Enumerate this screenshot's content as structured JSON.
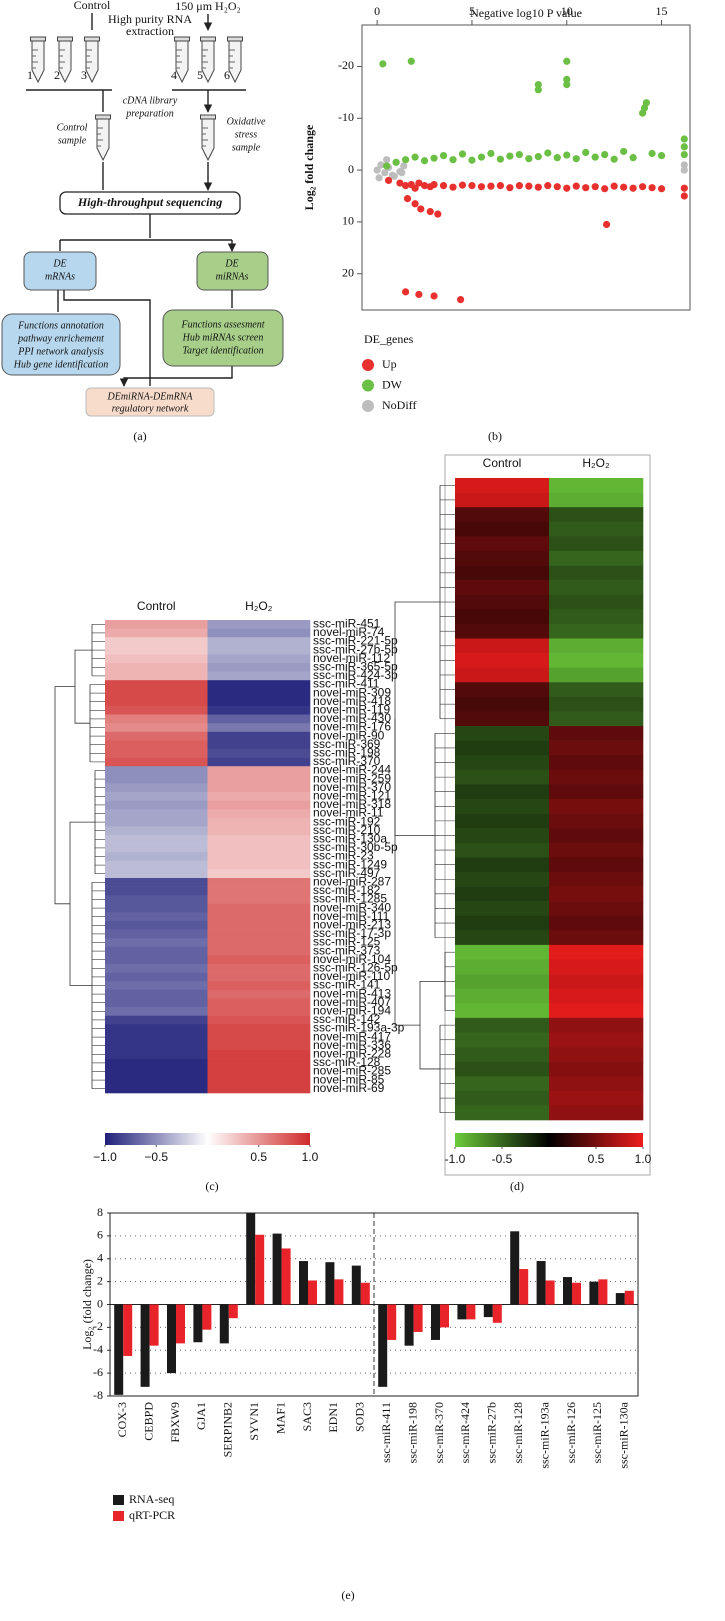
{
  "diagram": {
    "label": "(a)",
    "control": "Control",
    "treatment": "150 μm H₂O₂",
    "rna_extraction": [
      "High purity RNA",
      "extraction"
    ],
    "tube_numbers": [
      "1",
      "2",
      "3",
      "4",
      "5",
      "6"
    ],
    "library": [
      "cDNA library",
      "preparation"
    ],
    "control_sample": [
      "Control",
      "sample"
    ],
    "stress_sample": [
      "Oxidative",
      "stress",
      "sample"
    ],
    "sequencing": "High-throughput sequencing",
    "de_mrnas": [
      "DE",
      "mRNAs"
    ],
    "de_mirnas": [
      "DE",
      "miRNAs"
    ],
    "mrna_analysis": [
      "Functions annotation",
      "pathway enrichement",
      "PPI network analysis",
      "Hub gene identification"
    ],
    "mirna_analysis": [
      "Functions assesment",
      "Hub miRNAs screen",
      "Target identification"
    ],
    "network": [
      "DEmiRNA-DEmRNA",
      "regulatory network"
    ]
  },
  "chart_data": [
    {
      "type": "scatter",
      "label": "(b)",
      "x_label": "Negative log10 P value",
      "y_label": "Log₂ fold change",
      "xlim": [
        -0.8,
        16.5
      ],
      "xticks": [
        0,
        5,
        10,
        15
      ],
      "x_axis_position": "top",
      "ylim": [
        -28,
        27
      ],
      "yticks": [
        -20,
        -10,
        0,
        10,
        20
      ],
      "y_inverted": true,
      "legend_title": "DE_genes",
      "series": [
        {
          "name": "Up",
          "color": "#e8312f",
          "x": [
            0.6,
            1.2,
            1.5,
            1.8,
            2.0,
            2.2,
            2.5,
            2.8,
            3.0,
            3.5,
            4.0,
            4.5,
            5,
            5.5,
            6,
            6.5,
            7,
            7.5,
            8,
            8.5,
            9,
            9.5,
            10,
            10.5,
            11,
            11.5,
            12,
            12.5,
            13,
            13.5,
            14,
            14.5,
            15,
            16.2,
            16.2,
            1.6,
            2.0,
            2.3,
            2.8,
            3.2,
            12.1,
            1.5,
            2.2,
            3.0,
            4.4
          ],
          "values": [
            2,
            2.5,
            3,
            2.8,
            3.5,
            2.5,
            3,
            3.2,
            2.8,
            3,
            3.3,
            2.9,
            3,
            3.2,
            3.1,
            3,
            3.4,
            3,
            3.1,
            3.3,
            3,
            3.2,
            3.5,
            3.1,
            3.4,
            3.2,
            3.6,
            3.1,
            3.3,
            3.5,
            3.2,
            3.4,
            3.6,
            3.5,
            5,
            5.5,
            6.5,
            7.5,
            8,
            8.5,
            10.5,
            23.5,
            24,
            24.3,
            25
          ]
        },
        {
          "name": "DW",
          "color": "#6cbf45",
          "x": [
            0.3,
            1.8,
            10,
            8.5,
            8.5,
            10,
            10,
            14,
            14.1,
            14.2,
            0.5,
            1.0,
            1.5,
            2.0,
            2.5,
            3,
            3.5,
            4,
            4.5,
            5,
            5.5,
            6,
            6.5,
            7,
            7.5,
            8,
            8.5,
            9,
            9.5,
            10,
            10.5,
            11,
            11.5,
            12,
            12.5,
            13,
            13.5,
            14.5,
            15,
            16.2,
            16.2,
            16.2
          ],
          "values": [
            -20.5,
            -21,
            -21,
            -15.5,
            -16.5,
            -16.5,
            -17.5,
            -11,
            -12,
            -13,
            -0.8,
            -1.5,
            -2,
            -2.5,
            -1.8,
            -2.3,
            -2.8,
            -2,
            -3.1,
            -1.9,
            -2.5,
            -3.2,
            -2.1,
            -2.7,
            -3,
            -2.2,
            -2.6,
            -3.3,
            -2.4,
            -2.9,
            -2.2,
            -3.4,
            -2.5,
            -3,
            -2.1,
            -3.6,
            -2.4,
            -3.2,
            -2.8,
            -3,
            -4.5,
            -6
          ]
        },
        {
          "name": "NoDiff",
          "color": "#bdbdbd",
          "x": [
            0,
            0.2,
            0.4,
            0.6,
            0.8,
            1,
            1.2,
            1.4,
            0.1,
            0.5,
            0.9,
            1.3,
            16.2,
            16.2
          ],
          "values": [
            0,
            -1,
            0.5,
            -0.5,
            1,
            -1.5,
            0.3,
            -0.8,
            1.5,
            -2,
            1.2,
            0.5,
            0,
            -1
          ]
        }
      ]
    },
    {
      "type": "heatmap",
      "label": "(c)",
      "columns": [
        "Control",
        "H₂O₂"
      ],
      "rows": [
        "ssc-miR-451",
        "novel-miR-74",
        "ssc-miR-221-5p",
        "ssc-miR-27b-5p",
        "novel-miR-112",
        "ssc-miR-365-5p",
        "ssc-miR-424-3p",
        "ssc-miR-411",
        "novel-miR-309",
        "novel-miR-418",
        "novel-miR-119",
        "novel-miR-430",
        "novel-miR-176",
        "novel-miR-90",
        "ssc-miR-369",
        "ssc-miR-198",
        "ssc-miR-370",
        "novel-miR-244",
        "novel-miR-259",
        "novel-miR-370",
        "novel-miR-121",
        "novel-miR-318",
        "novel-miR-11",
        "ssc-miR-192",
        "ssc-miR-210",
        "ssc-miR-130a",
        "ssc-miR-30b-5p",
        "ssc-miR-23",
        "ssc-miR-1249",
        "ssc-miR-497",
        "novel-miR-287",
        "ssc-miR-182",
        "ssc-miR-1285",
        "novel-miR-340",
        "novel-miR-111",
        "novel-miR-213",
        "ssc-miR-17-3p",
        "ssc-miR-125",
        "ssc-miR-373",
        "novel-miR-104",
        "ssc-miR-126-5p",
        "novel-miR-110",
        "ssc-miR-141",
        "novel-miR-413",
        "novel-miR-407",
        "novel-miR-194",
        "ssc-miR-142",
        "ssc-miR-193a-3p",
        "novel-miR-417",
        "novel-miR-336",
        "novel-miR-228",
        "ssc-miR-128",
        "novel-miR-285",
        "novel-miR-85",
        "novel-miR-69"
      ],
      "values": [
        [
          0.45,
          -0.45
        ],
        [
          0.4,
          -0.5
        ],
        [
          0.25,
          -0.35
        ],
        [
          0.25,
          -0.35
        ],
        [
          0.3,
          -0.4
        ],
        [
          0.35,
          -0.45
        ],
        [
          0.35,
          -0.4
        ],
        [
          0.85,
          -0.95
        ],
        [
          0.85,
          -0.95
        ],
        [
          0.85,
          -0.95
        ],
        [
          0.8,
          -0.9
        ],
        [
          0.6,
          -0.7
        ],
        [
          0.55,
          -0.6
        ],
        [
          0.7,
          -0.85
        ],
        [
          0.75,
          -0.85
        ],
        [
          0.75,
          -0.8
        ],
        [
          0.8,
          -0.85
        ],
        [
          -0.5,
          0.45
        ],
        [
          -0.5,
          0.45
        ],
        [
          -0.45,
          0.45
        ],
        [
          -0.4,
          0.4
        ],
        [
          -0.45,
          0.45
        ],
        [
          -0.4,
          0.4
        ],
        [
          -0.4,
          0.35
        ],
        [
          -0.35,
          0.35
        ],
        [
          -0.3,
          0.3
        ],
        [
          -0.3,
          0.3
        ],
        [
          -0.35,
          0.3
        ],
        [
          -0.3,
          0.3
        ],
        [
          -0.3,
          0.25
        ],
        [
          -0.8,
          0.65
        ],
        [
          -0.8,
          0.65
        ],
        [
          -0.75,
          0.65
        ],
        [
          -0.75,
          0.7
        ],
        [
          -0.7,
          0.7
        ],
        [
          -0.75,
          0.7
        ],
        [
          -0.7,
          0.7
        ],
        [
          -0.65,
          0.7
        ],
        [
          -0.7,
          0.7
        ],
        [
          -0.7,
          0.75
        ],
        [
          -0.65,
          0.7
        ],
        [
          -0.7,
          0.7
        ],
        [
          -0.65,
          0.75
        ],
        [
          -0.7,
          0.7
        ],
        [
          -0.7,
          0.75
        ],
        [
          -0.65,
          0.75
        ],
        [
          -0.85,
          0.8
        ],
        [
          -0.9,
          0.85
        ],
        [
          -0.9,
          0.85
        ],
        [
          -0.9,
          0.85
        ],
        [
          -0.9,
          0.9
        ],
        [
          -0.95,
          0.9
        ],
        [
          -0.95,
          0.9
        ],
        [
          -0.95,
          0.9
        ],
        [
          -0.95,
          0.9
        ]
      ],
      "colors": [
        "#1f1f7a",
        "#ffffff",
        "#cf2a2a"
      ],
      "zlim": [
        -1,
        1
      ],
      "zticks": [
        {
          "value": -1,
          "label": "−1.0"
        },
        {
          "value": -0.5,
          "label": "−0.5"
        },
        0.5,
        {
          "value": 1,
          "label": "1.0"
        }
      ]
    },
    {
      "type": "heatmap",
      "label": "(d)",
      "columns": [
        "Control",
        "H₂O₂"
      ],
      "values": [
        [
          0.9,
          -0.9
        ],
        [
          0.85,
          -0.85
        ],
        [
          0.35,
          -0.4
        ],
        [
          0.3,
          -0.45
        ],
        [
          0.4,
          -0.4
        ],
        [
          0.35,
          -0.5
        ],
        [
          0.3,
          -0.4
        ],
        [
          0.4,
          -0.45
        ],
        [
          0.35,
          -0.4
        ],
        [
          0.3,
          -0.45
        ],
        [
          0.35,
          -0.5
        ],
        [
          0.85,
          -0.85
        ],
        [
          0.9,
          -0.9
        ],
        [
          0.85,
          -0.8
        ],
        [
          0.35,
          -0.45
        ],
        [
          0.3,
          -0.4
        ],
        [
          0.35,
          -0.45
        ],
        [
          -0.35,
          0.4
        ],
        [
          -0.3,
          0.45
        ],
        [
          -0.35,
          0.4
        ],
        [
          -0.4,
          0.45
        ],
        [
          -0.3,
          0.4
        ],
        [
          -0.35,
          0.5
        ],
        [
          -0.3,
          0.45
        ],
        [
          -0.35,
          0.4
        ],
        [
          -0.4,
          0.45
        ],
        [
          -0.3,
          0.4
        ],
        [
          -0.35,
          0.45
        ],
        [
          -0.3,
          0.5
        ],
        [
          -0.35,
          0.45
        ],
        [
          -0.3,
          0.4
        ],
        [
          -0.35,
          0.45
        ],
        [
          -0.9,
          0.95
        ],
        [
          -0.85,
          0.9
        ],
        [
          -0.8,
          0.85
        ],
        [
          -0.85,
          0.9
        ],
        [
          -0.9,
          0.95
        ],
        [
          -0.45,
          0.6
        ],
        [
          -0.5,
          0.65
        ],
        [
          -0.45,
          0.6
        ],
        [
          -0.4,
          0.55
        ],
        [
          -0.5,
          0.6
        ],
        [
          -0.45,
          0.65
        ],
        [
          -0.5,
          0.6
        ]
      ],
      "colors": [
        "#6ccb3a",
        "#000000",
        "#ee1c1c"
      ],
      "zlim": [
        -1,
        1
      ],
      "zticks": [
        {
          "value": -1,
          "label": "-1.0"
        },
        {
          "value": -0.5,
          "label": "-0.5"
        },
        0.5,
        {
          "value": 1,
          "label": "1.0"
        }
      ]
    },
    {
      "type": "bar",
      "label": "(e)",
      "y_label": "Log₂ (fold change)",
      "categories": [
        "COX-3",
        "CEBPD",
        "FBXW9",
        "GJA1",
        "SERPINB2",
        "SYVN1",
        "MAF1",
        "SAC3",
        "EDN1",
        "SOD3",
        "ssc-miR-411",
        "ssc-miR-198",
        "ssc-miR-370",
        "ssc-miR-424",
        "ssc-miR-27b",
        "ssc-miR-128",
        "ssc-miR-193a",
        "ssc-miR-126",
        "ssc-miR-125",
        "ssc-miR-130a"
      ],
      "series": [
        {
          "name": "RNA-seq",
          "color": "#1a1a1a",
          "values": [
            -7.9,
            -7.2,
            -6.0,
            -3.3,
            -3.4,
            8.0,
            6.2,
            3.8,
            3.7,
            3.4,
            -7.2,
            -3.6,
            -3.1,
            -1.3,
            -1.1,
            6.4,
            3.8,
            2.4,
            2.0,
            1.0
          ]
        },
        {
          "name": "qRT-PCR",
          "color": "#e8232a",
          "values": [
            -4.5,
            -3.6,
            -3.4,
            -2.2,
            -1.2,
            6.1,
            4.9,
            2.1,
            2.2,
            1.9,
            -3.1,
            -2.4,
            -2.0,
            -1.3,
            -1.6,
            3.1,
            2.1,
            1.9,
            2.2,
            1.2
          ]
        }
      ],
      "ylim": [
        -8,
        8
      ],
      "yticks": [
        -8,
        -6,
        -4,
        -2,
        0,
        2,
        4,
        6,
        8
      ],
      "grid": true
    }
  ]
}
